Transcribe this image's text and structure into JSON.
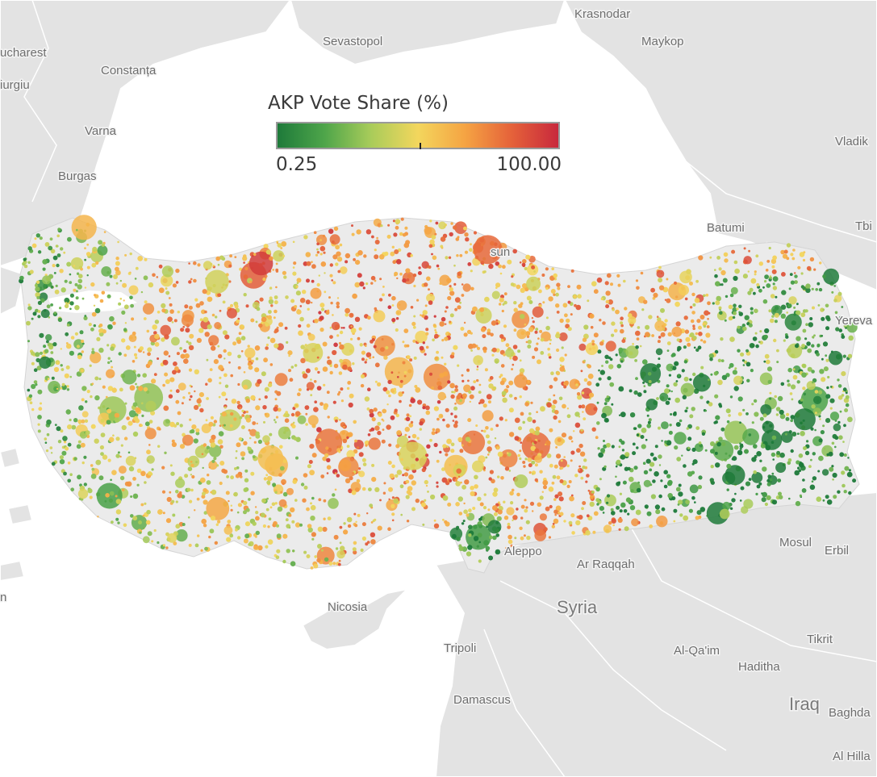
{
  "legend": {
    "title": "AKP Vote Share (%)",
    "min_label": "0.25",
    "max_label": "100.00",
    "color_scale": [
      "#1e7a3a",
      "#4ea54a",
      "#a9cc5a",
      "#f3d65d",
      "#f5a443",
      "#e5623a",
      "#c8283c"
    ]
  },
  "places": [
    "Krasnodar",
    "Sevastopol",
    "Maykop",
    "Bucharest",
    "Constanța",
    "Giurgiu",
    "Varna",
    "Burgas",
    "Batumi",
    "Vladikavkaz",
    "Tbilisi",
    "Yerevan",
    "Samsun",
    "Aleppo",
    "Ar Raqqah",
    "Mosul",
    "Erbil",
    "Syria",
    "Nicosia",
    "Tripoli",
    "Al-Qa'im",
    "Tikrit",
    "Haditha",
    "Damascus",
    "Iraq",
    "Baghdad",
    "Al Hillah"
  ],
  "map_labels": [
    {
      "text": "Krasnodar"
    },
    {
      "text": "Sevastopol"
    },
    {
      "text": "Maykop"
    },
    {
      "text": "ucharest"
    },
    {
      "text": "Constanța"
    },
    {
      "text": "iurgiu"
    },
    {
      "text": "Varna"
    },
    {
      "text": "Burgas"
    },
    {
      "text": "Batumi"
    },
    {
      "text": "Vladik"
    },
    {
      "text": "Tbi"
    },
    {
      "text": "Yereva"
    },
    {
      "text": "sun"
    },
    {
      "text": "Aleppo"
    },
    {
      "text": "Ar Raqqah"
    },
    {
      "text": "Mosul"
    },
    {
      "text": "Erbil"
    },
    {
      "text": "Syria"
    },
    {
      "text": "Nicosia"
    },
    {
      "text": "Tripoli"
    },
    {
      "text": "Al-Qa'im"
    },
    {
      "text": "Tikrit"
    },
    {
      "text": "Haditha"
    },
    {
      "text": "Damascus"
    },
    {
      "text": "Iraq"
    },
    {
      "text": "Baghda"
    },
    {
      "text": "Al Hilla"
    },
    {
      "text": "n"
    }
  ],
  "colors": {
    "sea": "#ffffff",
    "land": "#e3e3e3",
    "turkey_land": "#ebebeb",
    "border": "#ffffff",
    "low": "#1e7a3a",
    "mid": "#f3d65d",
    "high": "#c8283c"
  }
}
